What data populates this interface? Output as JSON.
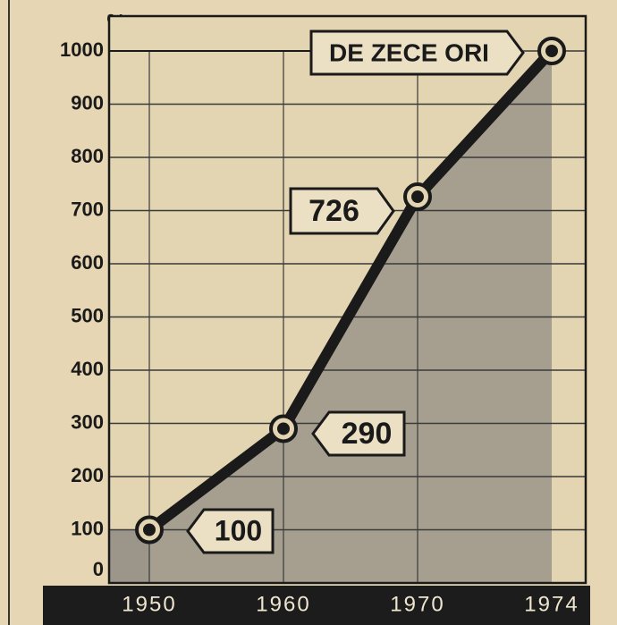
{
  "chart_data": {
    "type": "line",
    "area": true,
    "y_label": "%",
    "categories": [
      "1950",
      "1960",
      "1970",
      "1974"
    ],
    "values": [
      100,
      290,
      726,
      1000
    ],
    "annotation": "DE ZECE ORI",
    "color": "#1a1a1a",
    "area_color": "#9b958a",
    "ylim": [
      0,
      1000
    ],
    "yticks": [
      0,
      100,
      200,
      300,
      400,
      500,
      600,
      700,
      800,
      900,
      1000
    ],
    "grid": true
  }
}
